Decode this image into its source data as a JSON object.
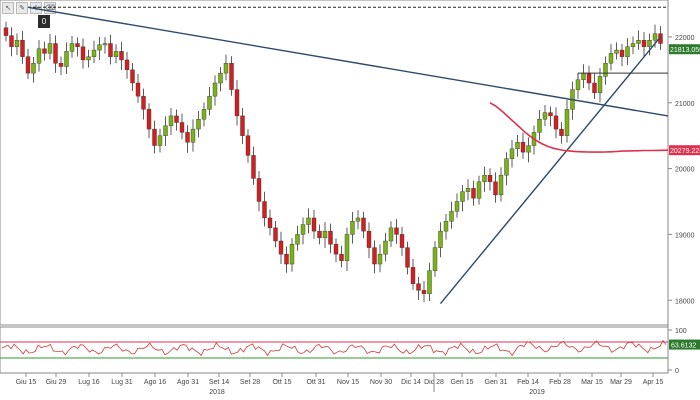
{
  "toolbar": {
    "icons": [
      "cursor-icon",
      "pencil-icon",
      "crosshair-icon",
      "eraser-icon"
    ]
  },
  "marker": {
    "label": "0"
  },
  "colors": {
    "up": "#7ab317",
    "down": "#d21f1f",
    "trend": "#2d4a6a",
    "ma": "#e0304f",
    "badge_ma": "#e0304f",
    "badge_price": "#2d7a2d",
    "osc": "#d03a3a"
  },
  "chart_data": {
    "type": "candlestick",
    "y_axis": {
      "ticks": [
        18000,
        19000,
        20000,
        21000,
        22000
      ],
      "labels": [
        "18000",
        "19000",
        "20000",
        "21000",
        "22000"
      ],
      "range": [
        17700,
        22500
      ]
    },
    "x_axis": {
      "labels": [
        "Giu 15",
        "Giu 29",
        "Lug 16",
        "Lug 31",
        "Ago 16",
        "Ago 31",
        "Set 14",
        "Set 28",
        "Ott 15",
        "Ott 31",
        "Nov 15",
        "Nov 30",
        "Dic 14",
        "Dic 28",
        "Gen 15",
        "Gen 31",
        "Feb 14",
        "Feb 28",
        "Mar 15",
        "Mar 29",
        "Apr 15"
      ],
      "years": [
        "2018",
        "2019"
      ]
    },
    "series": {
      "closes": [
        22020,
        21850,
        21950,
        21700,
        21450,
        21600,
        21820,
        21750,
        21900,
        21600,
        21550,
        21780,
        21900,
        21850,
        21650,
        21700,
        21800,
        21880,
        21900,
        21700,
        21780,
        21650,
        21500,
        21300,
        21100,
        20900,
        20600,
        20350,
        20500,
        20650,
        20800,
        20700,
        20550,
        20400,
        20600,
        20750,
        20900,
        21100,
        21300,
        21450,
        21600,
        21200,
        20800,
        20500,
        20200,
        19850,
        19500,
        19250,
        19100,
        18900,
        18700,
        18550,
        18850,
        19000,
        19150,
        19250,
        19050,
        18950,
        19050,
        18850,
        18700,
        18600,
        19000,
        19200,
        19250,
        19050,
        18800,
        18550,
        18700,
        18900,
        19100,
        19000,
        18800,
        18500,
        18250,
        18150,
        18100,
        18450,
        18800,
        19050,
        19200,
        19350,
        19500,
        19650,
        19700,
        19550,
        19800,
        19900,
        19800,
        19600,
        19900,
        20150,
        20300,
        20400,
        20250,
        20350,
        20550,
        20750,
        20850,
        20800,
        20600,
        20500,
        20900,
        21200,
        21350,
        21450,
        21300,
        21150,
        21400,
        21600,
        21750,
        21800,
        21700,
        21850,
        21900,
        21950,
        21850,
        21950,
        22050,
        21900
      ],
      "candle_step": 5.5,
      "ma_start_index": 88,
      "ma": [
        21000,
        20950,
        20880,
        20800,
        20720,
        20640,
        20560,
        20490,
        20430,
        20380,
        20340,
        20310,
        20290,
        20275,
        20265,
        20258,
        20255,
        20252,
        20250,
        20250,
        20252,
        20255,
        20260,
        20265,
        20268,
        20270,
        20272,
        20275,
        20275,
        20276,
        20278,
        20280
      ],
      "trendline_long": {
        "from": [
          0,
          22450
        ],
        "to": [
          118,
          20800
        ]
      },
      "trendline_up": {
        "from": [
          79,
          17950
        ],
        "to": [
          119,
          22000
        ]
      },
      "resistance": {
        "value": 22450
      },
      "support_box": {
        "value": 21450,
        "from_index": 104,
        "to_index": 119
      },
      "last_price": {
        "value": 21813.0508,
        "label": "21813.0508"
      },
      "ma_last": {
        "value": 20279.2234,
        "label": "20279.2234"
      }
    },
    "oscillator": {
      "ticks": [
        0,
        100
      ],
      "labels": [
        "0",
        "100"
      ],
      "upper": 70,
      "lower": 30,
      "last": {
        "value": 63.6132,
        "label": "63.6132"
      }
    }
  }
}
